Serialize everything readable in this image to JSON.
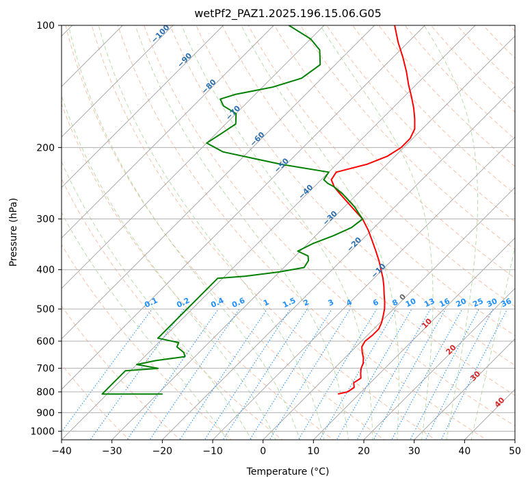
{
  "chart_data": {
    "type": "line",
    "title": "wetPf2_PAZ1.2025.196.15.06.G05",
    "xlabel": "Temperature (°C)",
    "ylabel": "Pressure (hPa)",
    "xlim": [
      -40,
      50
    ],
    "ylim": [
      1050,
      100
    ],
    "y_scale": "log",
    "grid": true,
    "x_ticks": [
      -40,
      -30,
      -20,
      -10,
      0,
      10,
      20,
      30,
      40,
      50
    ],
    "x_tick_labels": [
      "−40",
      "−30",
      "−20",
      "−10",
      "0",
      "10",
      "20",
      "30",
      "40",
      "50"
    ],
    "y_ticks": [
      100,
      200,
      300,
      400,
      500,
      600,
      700,
      800,
      900,
      1000
    ],
    "y_tick_labels": [
      "100",
      "200",
      "300",
      "400",
      "500",
      "600",
      "700",
      "800",
      "900",
      "1000"
    ],
    "skew_deg": 45,
    "colors": {
      "temperature": "#ff0000",
      "dewpoint": "#008000",
      "isotherm": "#a0a0a0",
      "dry_adiabat": "#f4a582",
      "moist_adiabat": "#a6d296",
      "mixing_ratio": "#1e90ff",
      "label_blue": "#2a6fb0",
      "label_red": "#d62728",
      "isobar": "#b0b0b0"
    },
    "series": [
      {
        "points": [
          [
            810,
            5.8
          ],
          [
            800,
            7.3
          ],
          [
            780,
            7.7
          ],
          [
            760,
            6.7
          ],
          [
            740,
            7.2
          ],
          [
            720,
            6.2
          ],
          [
            700,
            5.3
          ],
          [
            680,
            4.7
          ],
          [
            660,
            3.7
          ],
          [
            640,
            2.4
          ],
          [
            620,
            1.2
          ],
          [
            600,
            0.7
          ],
          [
            580,
            1.0
          ],
          [
            560,
            1.0
          ],
          [
            540,
            0.3
          ],
          [
            520,
            -0.7
          ],
          [
            500,
            -1.8
          ],
          [
            480,
            -3.2
          ],
          [
            460,
            -4.8
          ],
          [
            440,
            -6.4
          ],
          [
            420,
            -8.2
          ],
          [
            400,
            -10.3
          ],
          [
            380,
            -12.5
          ],
          [
            360,
            -15.0
          ],
          [
            340,
            -17.7
          ],
          [
            320,
            -20.6
          ],
          [
            300,
            -24.0
          ],
          [
            280,
            -28.6
          ],
          [
            260,
            -33.5
          ],
          [
            250,
            -36.0
          ],
          [
            240,
            -38.0
          ],
          [
            230,
            -38.5
          ],
          [
            220,
            -34.0
          ],
          [
            210,
            -31.5
          ],
          [
            200,
            -30.5
          ],
          [
            190,
            -30.5
          ],
          [
            180,
            -31.5
          ],
          [
            170,
            -33.5
          ],
          [
            160,
            -35.8
          ],
          [
            150,
            -38.5
          ],
          [
            140,
            -41.5
          ],
          [
            130,
            -44.5
          ],
          [
            120,
            -48.0
          ],
          [
            110,
            -52.0
          ],
          [
            100,
            -56.0
          ]
        ]
      },
      {
        "points": [
          [
            810,
            -29.0
          ],
          [
            810,
            -41.0
          ],
          [
            710,
            -41.0
          ],
          [
            700,
            -35.0
          ],
          [
            685,
            -40.0
          ],
          [
            670,
            -37.0
          ],
          [
            655,
            -32.0
          ],
          [
            640,
            -33.0
          ],
          [
            620,
            -35.5
          ],
          [
            605,
            -36.0
          ],
          [
            590,
            -41.0
          ],
          [
            580,
            -41.0
          ],
          [
            420,
            -41.0
          ],
          [
            415,
            -36.0
          ],
          [
            405,
            -30.0
          ],
          [
            395,
            -26.0
          ],
          [
            380,
            -26.5
          ],
          [
            370,
            -27.5
          ],
          [
            360,
            -30.5
          ],
          [
            345,
            -29.0
          ],
          [
            330,
            -26.5
          ],
          [
            315,
            -24.5
          ],
          [
            300,
            -24.0
          ],
          [
            290,
            -26.0
          ],
          [
            280,
            -28.0
          ],
          [
            260,
            -33.0
          ],
          [
            250,
            -36.0
          ],
          [
            245,
            -38.0
          ],
          [
            240,
            -39.5
          ],
          [
            230,
            -40.0
          ],
          [
            220,
            -51.0
          ],
          [
            205,
            -65.0
          ],
          [
            195,
            -70.0
          ],
          [
            185,
            -69.0
          ],
          [
            175,
            -68.0
          ],
          [
            165,
            -70.0
          ],
          [
            158,
            -74.0
          ],
          [
            152,
            -76.0
          ],
          [
            148,
            -74.0
          ],
          [
            142,
            -68.0
          ],
          [
            135,
            -64.0
          ],
          [
            125,
            -63.0
          ],
          [
            115,
            -66.0
          ],
          [
            108,
            -70.0
          ],
          [
            100,
            -77.0
          ]
        ]
      }
    ],
    "moist_adiabat_labels": [
      "−100",
      "−90",
      "−80",
      "−70",
      "−60",
      "−50",
      "−40",
      "−30",
      "−20",
      "−10",
      "0",
      "10",
      "20",
      "30",
      "40"
    ],
    "mixing_ratio_labels": [
      "0.1",
      "0.2",
      "0.4",
      "0.6",
      "1",
      "1.5",
      "2",
      "3",
      "4",
      "6",
      "8",
      "10",
      "13",
      "16",
      "20",
      "25",
      "30",
      "36"
    ]
  }
}
